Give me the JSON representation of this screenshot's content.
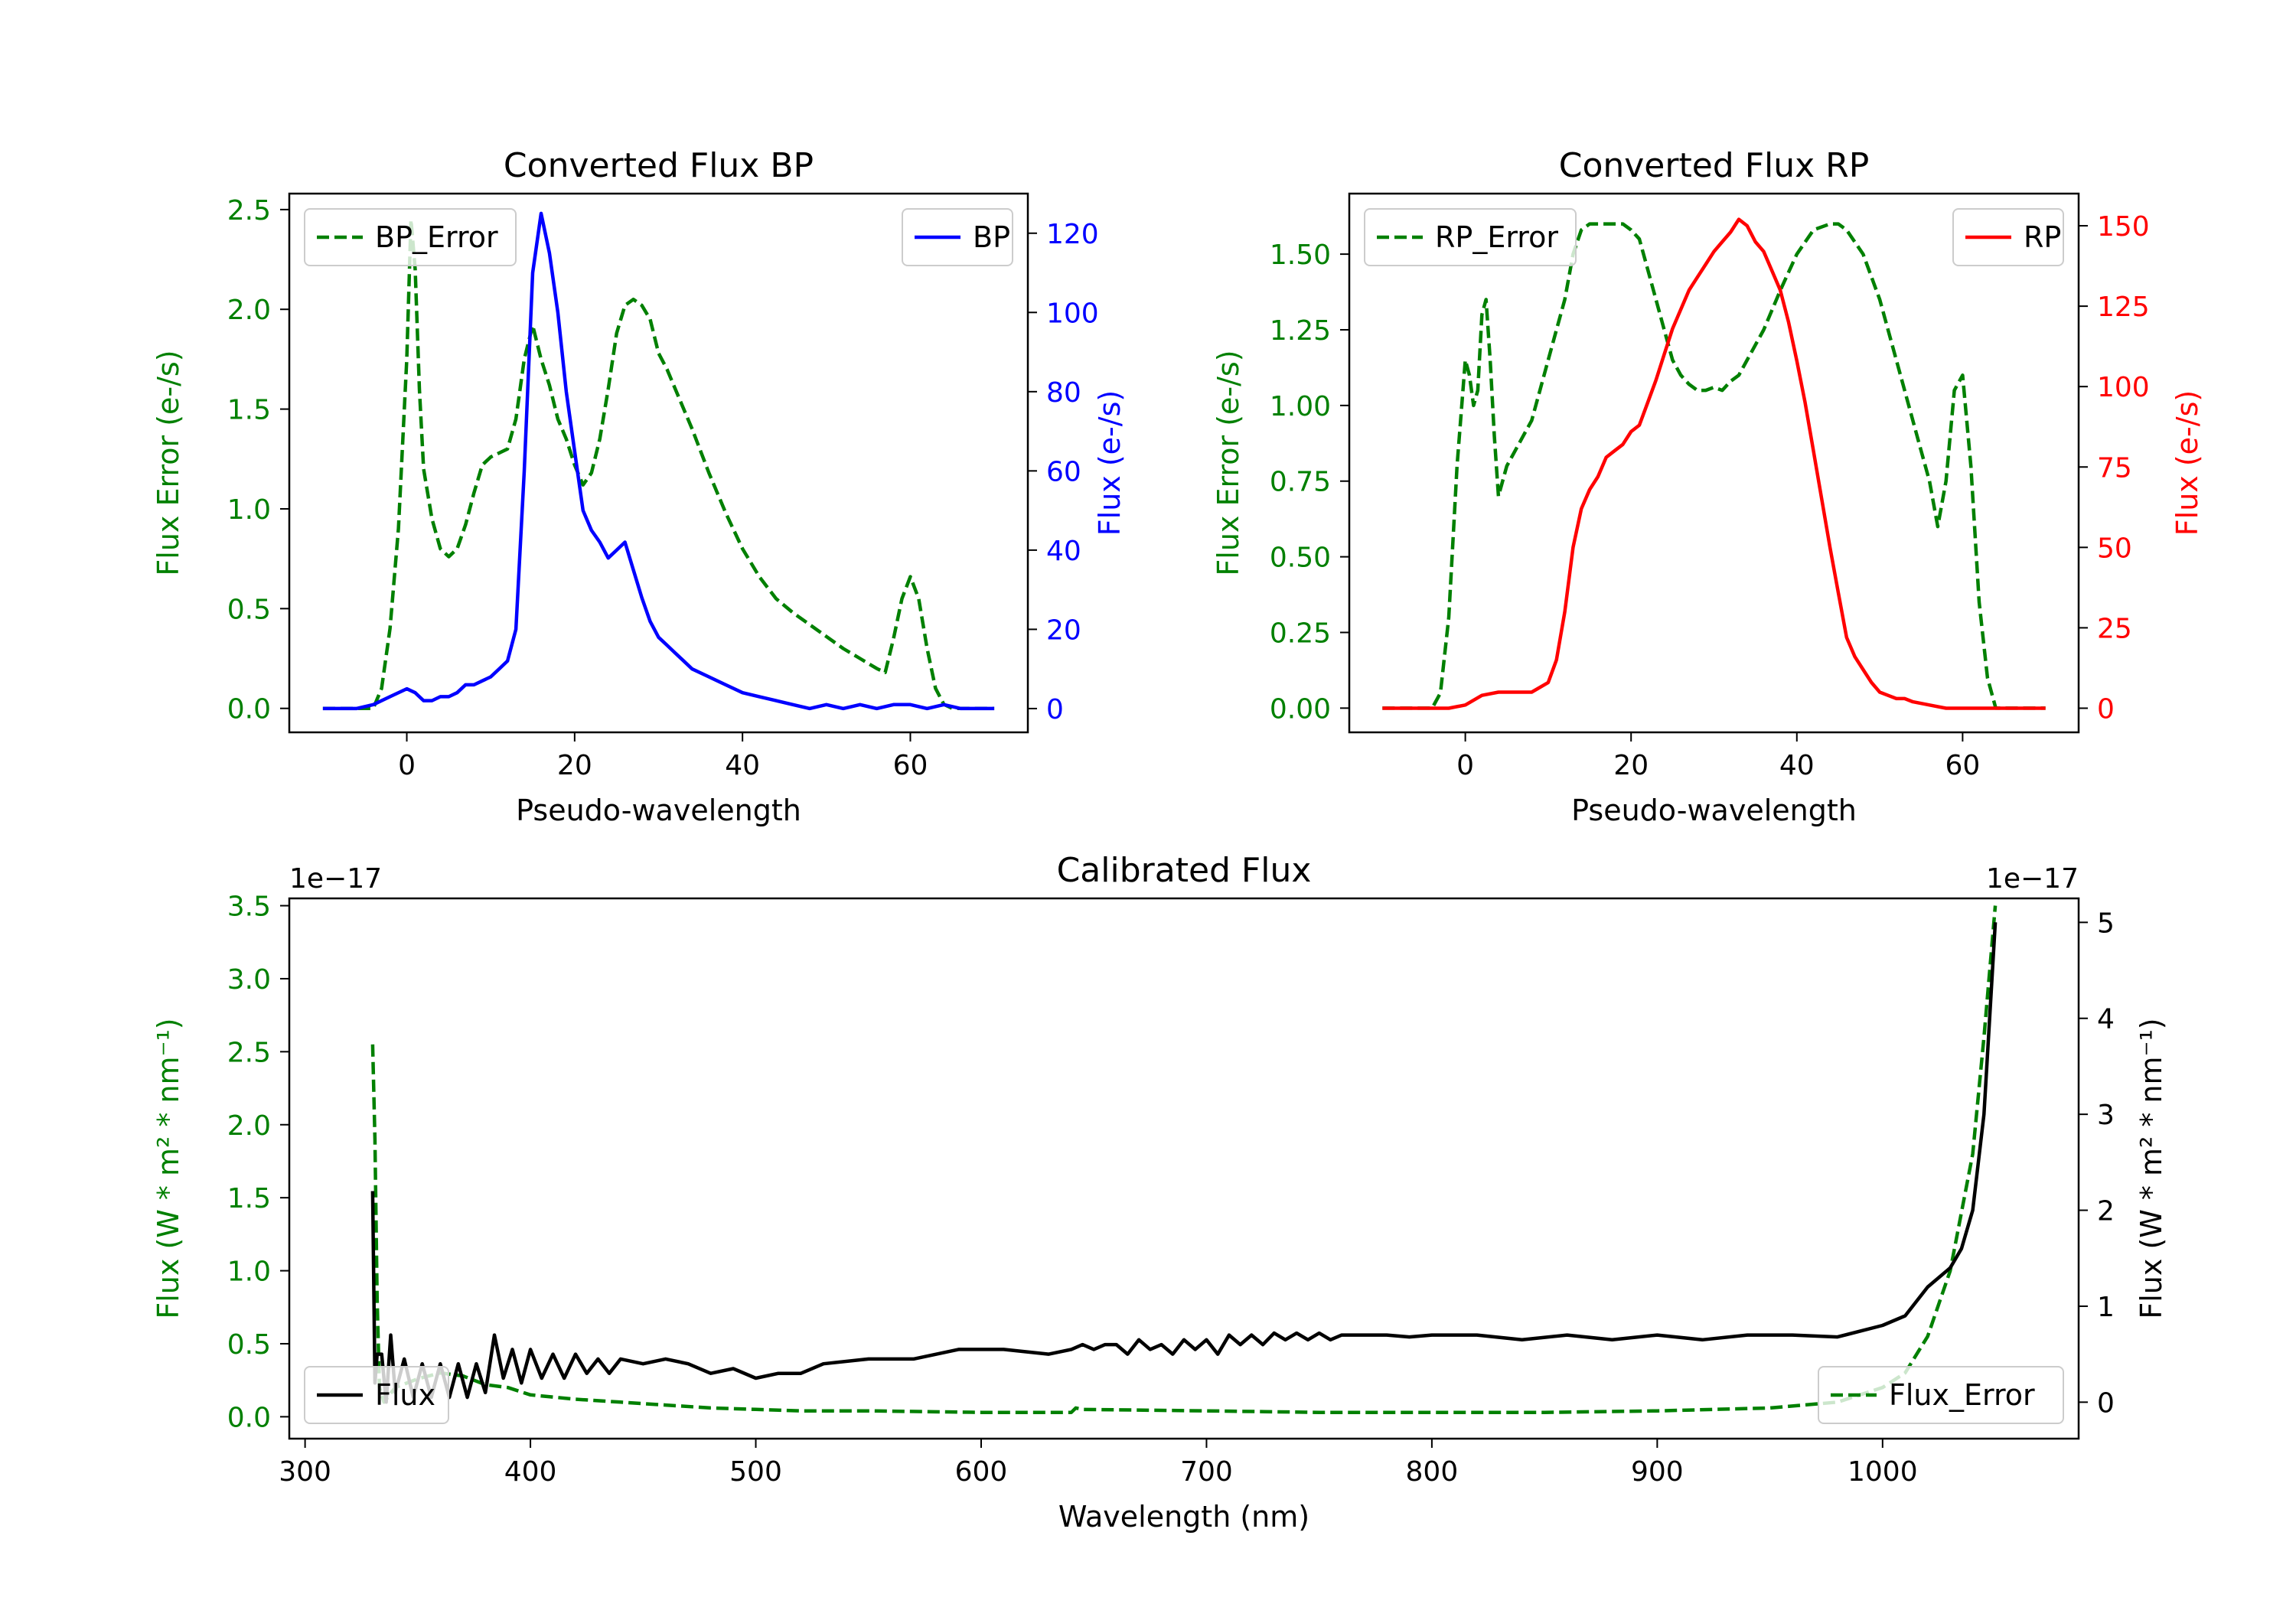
{
  "chart_data": [
    {
      "id": "bp",
      "type": "line",
      "title": "Converted Flux BP",
      "xlabel": "Pseudo-wavelength",
      "xlim": [
        -14,
        74
      ],
      "xticks": [
        0,
        20,
        40,
        60
      ],
      "left_axis": {
        "label": "Flux Error (e-/s)",
        "color": "#008000",
        "ylim": [
          -0.12,
          2.58
        ],
        "ticks": [
          0.0,
          0.5,
          1.0,
          1.5,
          2.0,
          2.5
        ],
        "tick_labels": [
          "0.0",
          "0.5",
          "1.0",
          "1.5",
          "2.0",
          "2.5"
        ]
      },
      "right_axis": {
        "label": "Flux (e-/s)",
        "color": "#0000ff",
        "ylim": [
          -6,
          130
        ],
        "ticks": [
          0,
          20,
          40,
          60,
          80,
          100,
          120
        ],
        "tick_labels": [
          "0",
          "20",
          "40",
          "60",
          "80",
          "100",
          "120"
        ]
      },
      "series": [
        {
          "name": "BP_Error",
          "axis": "left",
          "color": "#008000",
          "dash": true,
          "x": [
            -10,
            -4,
            -3,
            -2,
            -1,
            0,
            0.5,
            1,
            1.5,
            2,
            3,
            4,
            5,
            6,
            7,
            8,
            9,
            10,
            11,
            12,
            13,
            14,
            15,
            16,
            17,
            18,
            19,
            20,
            21,
            22,
            23,
            24,
            25,
            26,
            27,
            28,
            29,
            30,
            31,
            32,
            34,
            36,
            38,
            40,
            42,
            44,
            46,
            48,
            50,
            52,
            54,
            56,
            57,
            58,
            59,
            60,
            61,
            62,
            63,
            64,
            65,
            70
          ],
          "y": [
            0,
            0,
            0.1,
            0.4,
            0.9,
            1.75,
            2.45,
            2.2,
            1.6,
            1.2,
            0.95,
            0.8,
            0.76,
            0.8,
            0.92,
            1.08,
            1.22,
            1.26,
            1.28,
            1.3,
            1.45,
            1.75,
            1.92,
            1.75,
            1.62,
            1.45,
            1.35,
            1.22,
            1.12,
            1.18,
            1.35,
            1.6,
            1.88,
            2.02,
            2.05,
            2.02,
            1.95,
            1.78,
            1.7,
            1.6,
            1.4,
            1.18,
            0.98,
            0.8,
            0.66,
            0.55,
            0.48,
            0.42,
            0.36,
            0.3,
            0.25,
            0.2,
            0.18,
            0.35,
            0.55,
            0.66,
            0.55,
            0.3,
            0.1,
            0.02,
            0,
            0
          ]
        },
        {
          "name": "BP",
          "axis": "right",
          "color": "#0000ff",
          "dash": false,
          "x": [
            -10,
            -6,
            -4,
            -2,
            0,
            1,
            2,
            3,
            4,
            5,
            6,
            7,
            8,
            9,
            10,
            11,
            12,
            13,
            14,
            15,
            16,
            17,
            18,
            19,
            20,
            21,
            22,
            23,
            24,
            25,
            26,
            27,
            28,
            29,
            30,
            31,
            32,
            33,
            34,
            36,
            38,
            40,
            42,
            44,
            46,
            48,
            50,
            52,
            54,
            56,
            58,
            60,
            62,
            64,
            66,
            70
          ],
          "y": [
            0,
            0,
            1,
            3,
            5,
            4,
            2,
            2,
            3,
            3,
            4,
            6,
            6,
            7,
            8,
            10,
            12,
            20,
            60,
            110,
            125,
            115,
            100,
            80,
            65,
            50,
            45,
            42,
            38,
            40,
            42,
            35,
            28,
            22,
            18,
            16,
            14,
            12,
            10,
            8,
            6,
            4,
            3,
            2,
            1,
            0,
            1,
            0,
            1,
            0,
            1,
            1,
            0,
            1,
            0,
            0
          ]
        }
      ],
      "legend": [
        {
          "label": "BP_Error",
          "position": "upper-left"
        },
        {
          "label": "BP",
          "position": "upper-right"
        }
      ]
    },
    {
      "id": "rp",
      "type": "line",
      "title": "Converted Flux RP",
      "xlabel": "Pseudo-wavelength",
      "xlim": [
        -14,
        74
      ],
      "xticks": [
        0,
        20,
        40,
        60
      ],
      "left_axis": {
        "label": "Flux Error (e-/s)",
        "color": "#008000",
        "ylim": [
          -0.08,
          1.7
        ],
        "ticks": [
          0,
          0.25,
          0.5,
          0.75,
          1.0,
          1.25,
          1.5
        ],
        "tick_labels": [
          "0.00",
          "0.25",
          "0.50",
          "0.75",
          "1.00",
          "1.25",
          "1.50"
        ]
      },
      "right_axis": {
        "label": "Flux (e-/s)",
        "color": "#ff0000",
        "ylim": [
          -7.5,
          160
        ],
        "ticks": [
          0,
          25,
          50,
          75,
          100,
          125,
          150
        ],
        "tick_labels": [
          "0",
          "25",
          "50",
          "75",
          "100",
          "125",
          "150"
        ]
      },
      "series": [
        {
          "name": "RP_Error",
          "axis": "left",
          "color": "#008000",
          "dash": true,
          "x": [
            -10,
            -4,
            -3,
            -2,
            -1,
            0,
            0.5,
            1,
            1.5,
            2,
            2.5,
            3,
            3.5,
            4,
            5,
            6,
            7,
            8,
            9,
            10,
            11,
            12,
            13,
            14,
            15,
            16,
            17,
            18,
            19,
            20,
            21,
            22,
            23,
            24,
            25,
            26,
            27,
            28,
            29,
            30,
            31,
            32,
            33,
            34,
            35,
            36,
            38,
            40,
            42,
            44,
            45,
            46,
            48,
            50,
            52,
            54,
            55,
            56,
            57,
            58,
            59,
            60,
            61,
            62,
            63,
            64,
            70
          ],
          "y": [
            0,
            0,
            0.05,
            0.3,
            0.8,
            1.15,
            1.1,
            1.0,
            1.05,
            1.3,
            1.35,
            1.15,
            0.9,
            0.7,
            0.8,
            0.85,
            0.9,
            0.95,
            1.05,
            1.15,
            1.25,
            1.35,
            1.5,
            1.58,
            1.6,
            1.6,
            1.6,
            1.6,
            1.6,
            1.58,
            1.55,
            1.45,
            1.35,
            1.25,
            1.15,
            1.1,
            1.07,
            1.05,
            1.05,
            1.06,
            1.05,
            1.08,
            1.1,
            1.15,
            1.2,
            1.25,
            1.38,
            1.5,
            1.58,
            1.6,
            1.6,
            1.58,
            1.5,
            1.35,
            1.15,
            0.95,
            0.85,
            0.75,
            0.6,
            0.75,
            1.05,
            1.1,
            0.8,
            0.35,
            0.1,
            0,
            0
          ]
        },
        {
          "name": "RP",
          "axis": "right",
          "color": "#ff0000",
          "dash": false,
          "x": [
            -10,
            -4,
            -2,
            0,
            2,
            4,
            6,
            8,
            10,
            11,
            12,
            13,
            14,
            15,
            16,
            17,
            18,
            19,
            20,
            21,
            22,
            23,
            24,
            25,
            26,
            27,
            28,
            29,
            30,
            31,
            32,
            33,
            34,
            35,
            36,
            37,
            38,
            39,
            40,
            41,
            42,
            43,
            44,
            45,
            46,
            47,
            48,
            49,
            50,
            51,
            52,
            53,
            54,
            56,
            58,
            60,
            62,
            64,
            70
          ],
          "y": [
            0,
            0,
            0,
            1,
            4,
            5,
            5,
            5,
            8,
            15,
            30,
            50,
            62,
            68,
            72,
            78,
            80,
            82,
            86,
            88,
            95,
            102,
            110,
            118,
            124,
            130,
            134,
            138,
            142,
            145,
            148,
            152,
            150,
            145,
            142,
            136,
            130,
            120,
            108,
            95,
            80,
            65,
            50,
            36,
            22,
            16,
            12,
            8,
            5,
            4,
            3,
            3,
            2,
            1,
            0,
            0,
            0,
            0,
            0
          ]
        }
      ],
      "legend": [
        {
          "label": "RP_Error",
          "position": "upper-left"
        },
        {
          "label": "RP",
          "position": "upper-right"
        }
      ]
    },
    {
      "id": "cal",
      "type": "line",
      "title": "Calibrated Flux",
      "xlabel": "Wavelength (nm)",
      "xlim": [
        293,
        1087
      ],
      "xticks": [
        300,
        400,
        500,
        600,
        700,
        800,
        900,
        1000
      ],
      "left_axis": {
        "label": "Flux (W * m² * nm⁻¹)",
        "color": "#008000",
        "offset_text": "1e−17",
        "ylim": [
          -0.15,
          3.55
        ],
        "ticks": [
          0,
          0.5,
          1.0,
          1.5,
          2.0,
          2.5,
          3.0,
          3.5
        ],
        "tick_labels": [
          "0.0",
          "0.5",
          "1.0",
          "1.5",
          "2.0",
          "2.5",
          "3.0",
          "3.5"
        ]
      },
      "right_axis": {
        "label": "Flux (W * m² * nm⁻¹)",
        "color": "#000000",
        "offset_text": "1e−17",
        "ylim": [
          -0.38,
          5.25
        ],
        "ticks": [
          0,
          1,
          2,
          3,
          4,
          5
        ],
        "tick_labels": [
          "0",
          "1",
          "2",
          "3",
          "4",
          "5"
        ]
      },
      "series": [
        {
          "name": "Flux_Error",
          "axis": "left",
          "color": "#008000",
          "dash": true,
          "x": [
            330,
            331,
            332,
            333,
            335,
            340,
            350,
            360,
            370,
            380,
            390,
            400,
            420,
            440,
            460,
            480,
            500,
            520,
            550,
            600,
            640,
            642,
            645,
            700,
            750,
            800,
            850,
            900,
            950,
            980,
            1000,
            1010,
            1020,
            1030,
            1040,
            1045,
            1050
          ],
          "y": [
            2.55,
            1.9,
            0.8,
            0.2,
            0.1,
            0.2,
            0.26,
            0.3,
            0.28,
            0.22,
            0.2,
            0.15,
            0.12,
            0.1,
            0.08,
            0.06,
            0.05,
            0.04,
            0.04,
            0.03,
            0.03,
            0.06,
            0.05,
            0.04,
            0.03,
            0.03,
            0.03,
            0.04,
            0.06,
            0.1,
            0.2,
            0.3,
            0.55,
            1.0,
            1.8,
            2.6,
            3.5
          ]
        },
        {
          "name": "Flux",
          "axis": "right",
          "color": "#000000",
          "dash": false,
          "x": [
            330,
            331,
            332,
            334,
            336,
            338,
            340,
            344,
            348,
            352,
            356,
            360,
            364,
            368,
            372,
            376,
            380,
            384,
            388,
            392,
            396,
            400,
            405,
            410,
            415,
            420,
            425,
            430,
            435,
            440,
            450,
            460,
            470,
            480,
            490,
            500,
            510,
            520,
            530,
            550,
            570,
            590,
            610,
            630,
            640,
            645,
            650,
            655,
            660,
            665,
            670,
            675,
            680,
            685,
            690,
            695,
            700,
            705,
            710,
            715,
            720,
            725,
            730,
            735,
            740,
            745,
            750,
            755,
            760,
            770,
            780,
            790,
            800,
            820,
            840,
            860,
            880,
            900,
            920,
            940,
            960,
            980,
            1000,
            1010,
            1020,
            1030,
            1035,
            1040,
            1045,
            1050
          ],
          "y": [
            2.2,
            0.2,
            0.5,
            0.5,
            0.0,
            0.7,
            0.1,
            0.45,
            0.05,
            0.4,
            0.05,
            0.4,
            0.05,
            0.4,
            0.05,
            0.4,
            0.1,
            0.7,
            0.25,
            0.55,
            0.2,
            0.55,
            0.25,
            0.5,
            0.25,
            0.5,
            0.3,
            0.45,
            0.3,
            0.45,
            0.4,
            0.45,
            0.4,
            0.3,
            0.35,
            0.25,
            0.3,
            0.3,
            0.4,
            0.45,
            0.45,
            0.55,
            0.55,
            0.5,
            0.55,
            0.6,
            0.55,
            0.6,
            0.6,
            0.5,
            0.65,
            0.55,
            0.6,
            0.5,
            0.65,
            0.55,
            0.65,
            0.5,
            0.7,
            0.6,
            0.7,
            0.6,
            0.72,
            0.65,
            0.72,
            0.65,
            0.72,
            0.65,
            0.7,
            0.7,
            0.7,
            0.68,
            0.7,
            0.7,
            0.65,
            0.7,
            0.65,
            0.7,
            0.65,
            0.7,
            0.7,
            0.68,
            0.8,
            0.9,
            1.2,
            1.4,
            1.6,
            2.0,
            3.0,
            5.0
          ]
        }
      ],
      "legend": [
        {
          "label": "Flux",
          "position": "lower-left"
        },
        {
          "label": "Flux_Error",
          "position": "lower-right"
        }
      ]
    }
  ]
}
